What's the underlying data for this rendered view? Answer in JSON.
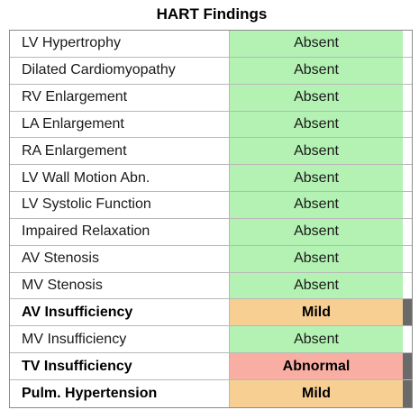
{
  "title": "HART Findings",
  "colors": {
    "absent": "#b3f2b3",
    "mild": "#f7cf92",
    "abnormal": "#f9aea3",
    "marker": "#6a6a6a"
  },
  "findings": [
    {
      "label": "LV Hypertrophy",
      "value": "Absent",
      "status": "absent",
      "flagged": false
    },
    {
      "label": "Dilated Cardiomyopathy",
      "value": "Absent",
      "status": "absent",
      "flagged": false
    },
    {
      "label": "RV Enlargement",
      "value": "Absent",
      "status": "absent",
      "flagged": false
    },
    {
      "label": "LA Enlargement",
      "value": "Absent",
      "status": "absent",
      "flagged": false
    },
    {
      "label": "RA Enlargement",
      "value": "Absent",
      "status": "absent",
      "flagged": false
    },
    {
      "label": "LV Wall Motion Abn.",
      "value": "Absent",
      "status": "absent",
      "flagged": false
    },
    {
      "label": "LV Systolic Function",
      "value": "Absent",
      "status": "absent",
      "flagged": false
    },
    {
      "label": "Impaired Relaxation",
      "value": "Absent",
      "status": "absent",
      "flagged": false
    },
    {
      "label": "AV Stenosis",
      "value": "Absent",
      "status": "absent",
      "flagged": false
    },
    {
      "label": "MV Stenosis",
      "value": "Absent",
      "status": "absent",
      "flagged": false
    },
    {
      "label": "AV Insufficiency",
      "value": "Mild",
      "status": "mild",
      "flagged": true
    },
    {
      "label": "MV Insufficiency",
      "value": "Absent",
      "status": "absent",
      "flagged": false
    },
    {
      "label": "TV Insufficiency",
      "value": "Abnormal",
      "status": "abnormal",
      "flagged": true
    },
    {
      "label": "Pulm. Hypertension",
      "value": "Mild",
      "status": "mild",
      "flagged": true
    }
  ]
}
